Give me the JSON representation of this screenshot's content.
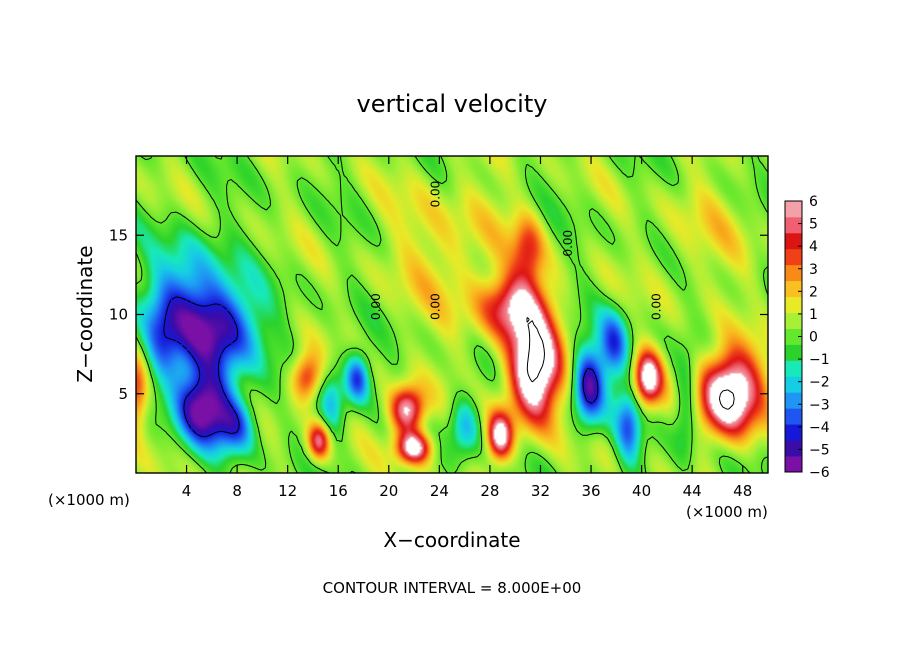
{
  "chart_data": {
    "type": "heatmap",
    "title": "vertical velocity",
    "xlabel": "X−coordinate",
    "ylabel": "Z−coordinate",
    "x_unit_left": "(×1000 m)",
    "x_unit_right": "(×1000 m)",
    "footer": "CONTOUR INTERVAL = 8.000E+00",
    "xlim": [
      0,
      50
    ],
    "ylim": [
      0,
      20
    ],
    "x_ticks": [
      4,
      8,
      12,
      16,
      20,
      24,
      28,
      32,
      36,
      40,
      44,
      48
    ],
    "y_ticks": [
      5,
      10,
      15
    ],
    "contour_label": "0.00",
    "colorbar": {
      "min": -6,
      "max": 6,
      "tick_values": [
        6,
        5,
        4,
        3,
        2,
        1,
        0,
        -1,
        -2,
        -3,
        -4,
        -5,
        -6
      ],
      "tick_labels": [
        "6",
        "5",
        "4",
        "3",
        "2",
        "1",
        "0",
        "−1",
        "−2",
        "−3",
        "−4",
        "−5",
        "−6"
      ],
      "colors": [
        "#7a10a6",
        "#3a0ca8",
        "#1518d8",
        "#1f55f0",
        "#1f95f5",
        "#16cde6",
        "#18e9b8",
        "#2bd22b",
        "#62e82c",
        "#a8f038",
        "#e8ea28",
        "#f8c020",
        "#f88a18",
        "#f04018",
        "#dc1414",
        "#f06070",
        "#f4a0a8"
      ]
    },
    "features": [
      {
        "x": 5.5,
        "z": 4.2,
        "w": -6.5,
        "sx": 2.2,
        "sz": 2.4
      },
      {
        "x": 6.5,
        "z": 9.0,
        "w": -5.5,
        "sx": 3.2,
        "sz": 2.8
      },
      {
        "x": 4.0,
        "z": 11.5,
        "w": -3.2,
        "sx": 3.0,
        "sz": 3.5
      },
      {
        "x": 8.0,
        "z": 3.0,
        "w": -3.5,
        "sx": 1.5,
        "sz": 1.8
      },
      {
        "x": 2.0,
        "z": 8.0,
        "w": -2.5,
        "sx": 1.5,
        "sz": 3.0
      },
      {
        "x": 0.0,
        "z": 5.0,
        "w": 3.5,
        "sx": 0.9,
        "sz": 2.2
      },
      {
        "x": 13.5,
        "z": 6.0,
        "w": 4.5,
        "sx": 1.2,
        "sz": 1.5
      },
      {
        "x": 14.5,
        "z": 2.0,
        "w": 5.0,
        "sx": 0.9,
        "sz": 1.2
      },
      {
        "x": 15.5,
        "z": 4.5,
        "w": -2.5,
        "sx": 1.0,
        "sz": 2.5
      },
      {
        "x": 17.5,
        "z": 6.0,
        "w": -4.5,
        "sx": 1.0,
        "sz": 1.6
      },
      {
        "x": 21.5,
        "z": 4.0,
        "w": 6.5,
        "sx": 1.4,
        "sz": 1.5
      },
      {
        "x": 22.0,
        "z": 1.6,
        "w": 6.5,
        "sx": 1.4,
        "sz": 1.0
      },
      {
        "x": 26.0,
        "z": 3.0,
        "w": -3.0,
        "sx": 1.2,
        "sz": 2.0
      },
      {
        "x": 28.8,
        "z": 2.3,
        "w": 6.5,
        "sx": 1.0,
        "sz": 1.5
      },
      {
        "x": 31.5,
        "z": 6.5,
        "w": 8.5,
        "sx": 2.0,
        "sz": 3.2
      },
      {
        "x": 30.0,
        "z": 10.5,
        "w": 5.0,
        "sx": 2.6,
        "sz": 2.0
      },
      {
        "x": 31.0,
        "z": 14.0,
        "w": 3.0,
        "sx": 1.2,
        "sz": 2.2
      },
      {
        "x": 35.8,
        "z": 5.5,
        "w": -5.5,
        "sx": 1.2,
        "sz": 2.5
      },
      {
        "x": 37.8,
        "z": 8.0,
        "w": -4.0,
        "sx": 1.2,
        "sz": 2.2
      },
      {
        "x": 40.5,
        "z": 6.0,
        "w": 6.5,
        "sx": 1.1,
        "sz": 1.7
      },
      {
        "x": 39.0,
        "z": 3.0,
        "w": -3.5,
        "sx": 1.0,
        "sz": 2.5
      },
      {
        "x": 47.0,
        "z": 5.0,
        "w": 8.5,
        "sx": 2.4,
        "sz": 2.6
      },
      {
        "x": 43.5,
        "z": 4.0,
        "w": -2.5,
        "sx": 1.0,
        "sz": 3.0
      },
      {
        "x": 25.0,
        "z": 14.0,
        "w": 1.5,
        "sx": 5.0,
        "sz": 5.0
      },
      {
        "x": 45.0,
        "z": 15.0,
        "w": 1.0,
        "sx": 4.0,
        "sz": 4.0
      }
    ]
  }
}
